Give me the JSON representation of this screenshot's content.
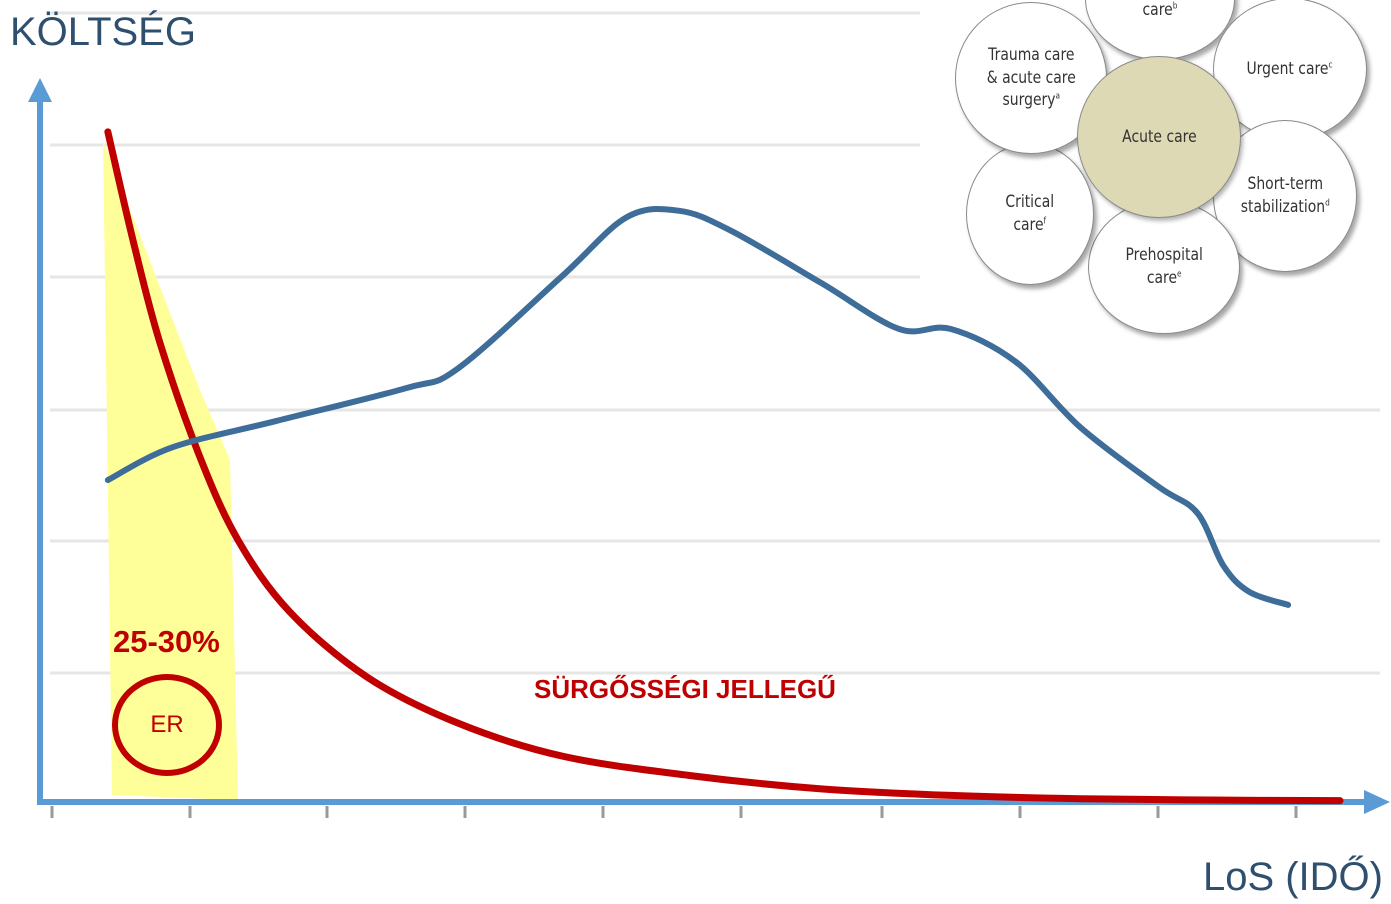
{
  "chart_data": {
    "type": "line",
    "ylabel": "KÖLTSÉG",
    "xlabel": "LoS (IDŐ)",
    "grid": true,
    "x_ticks": 10,
    "series": [
      {
        "name": "SÜRGŐSSÉGI JELLEGŰ",
        "color": "#c00000",
        "values_norm": [
          [
            0.05,
            1.02
          ],
          [
            0.07,
            0.85
          ],
          [
            0.09,
            0.7
          ],
          [
            0.12,
            0.53
          ],
          [
            0.15,
            0.4
          ],
          [
            0.19,
            0.29
          ],
          [
            0.25,
            0.19
          ],
          [
            0.32,
            0.12
          ],
          [
            0.4,
            0.07
          ],
          [
            0.5,
            0.04
          ],
          [
            0.6,
            0.02
          ],
          [
            0.7,
            0.01
          ],
          [
            0.8,
            0.005
          ],
          [
            0.9,
            0.003
          ],
          [
            1.0,
            0.002
          ]
        ]
      },
      {
        "name": "",
        "color": "#3d6d98",
        "values_norm": [
          [
            0.05,
            0.49
          ],
          [
            0.1,
            0.54
          ],
          [
            0.18,
            0.58
          ],
          [
            0.28,
            0.63
          ],
          [
            0.32,
            0.66
          ],
          [
            0.4,
            0.8
          ],
          [
            0.45,
            0.89
          ],
          [
            0.49,
            0.9
          ],
          [
            0.53,
            0.87
          ],
          [
            0.6,
            0.79
          ],
          [
            0.66,
            0.72
          ],
          [
            0.7,
            0.72
          ],
          [
            0.75,
            0.67
          ],
          [
            0.8,
            0.57
          ],
          [
            0.86,
            0.48
          ],
          [
            0.89,
            0.44
          ],
          [
            0.91,
            0.36
          ],
          [
            0.93,
            0.32
          ],
          [
            0.96,
            0.3
          ]
        ]
      }
    ],
    "highlight": {
      "x_start": 0.05,
      "x_end": 0.14,
      "color": "#ffff9a"
    },
    "annotations": {
      "percent": "25-30%",
      "circle": "ER",
      "red_label": "SÜRGŐSSÉGI JELLEGŰ"
    }
  },
  "diagram": {
    "center": "Acute care",
    "petals": [
      {
        "text": "Emergency care",
        "sup": "b"
      },
      {
        "text": "Urgent care",
        "sup": "c"
      },
      {
        "text": "Short-term stabilization",
        "sup": "d"
      },
      {
        "text": "Prehospital care",
        "sup": "e"
      },
      {
        "text": "Critical care",
        "sup": "f"
      },
      {
        "text": "Trauma care & acute care surgery",
        "sup": "a"
      }
    ]
  },
  "colors": {
    "axis": "#5b9bd5",
    "grid": "#e6e6e6",
    "red": "#c00000",
    "blue": "#3d6d98"
  }
}
